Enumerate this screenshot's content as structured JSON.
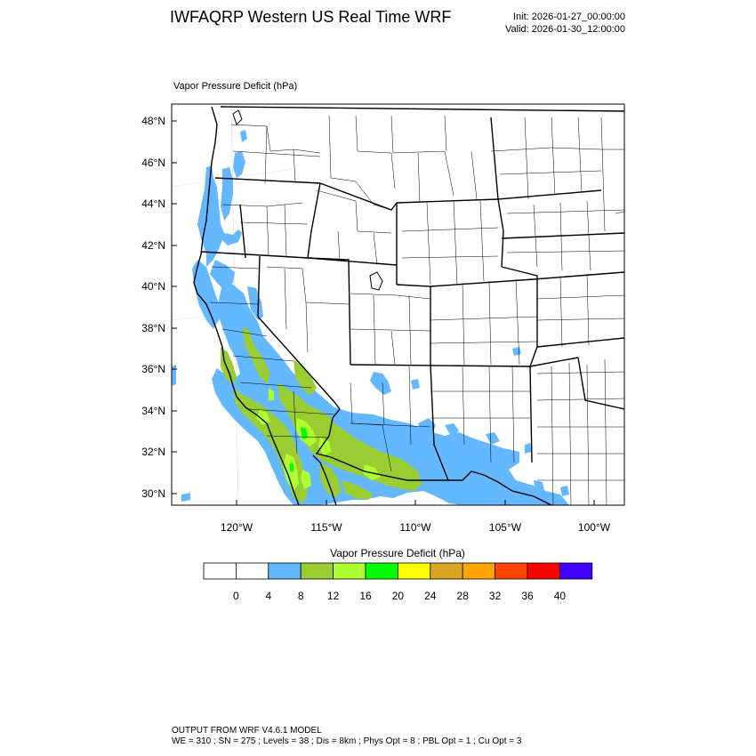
{
  "header": {
    "title": "IWFAQRP Western US Real Time WRF",
    "init": "Init: 2026-01-27_00:00:00",
    "valid": "Valid: 2026-01-30_12:00:00"
  },
  "map": {
    "field_label": "Vapor Pressure Deficit   (hPa)",
    "lat_ticks": [
      "48°N",
      "46°N",
      "44°N",
      "42°N",
      "40°N",
      "38°N",
      "36°N",
      "34°N",
      "32°N",
      "30°N"
    ],
    "lon_ticks": [
      "120°W",
      "115°W",
      "110°W",
      "105°W",
      "100°W"
    ]
  },
  "colorbar": {
    "title": "Vapor Pressure Deficit  (hPa)",
    "labels": [
      "0",
      "4",
      "8",
      "12",
      "16",
      "20",
      "24",
      "28",
      "32",
      "36",
      "40"
    ],
    "colors": [
      "#ffffff",
      "#ffffff",
      "#63b8ff",
      "#9acd32",
      "#adff2f",
      "#00ff00",
      "#ffff00",
      "#daa520",
      "#ffa500",
      "#ff4500",
      "#ff0000",
      "#3f00ff"
    ]
  },
  "footer": {
    "line1": "OUTPUT FROM WRF V4.6.1 MODEL",
    "line2": "WE = 310 ; SN = 275 ; Levels = 38 ; Dis = 8km ; Phys Opt = 8 ; PBL Opt = 1 ; Cu Opt = 3"
  }
}
